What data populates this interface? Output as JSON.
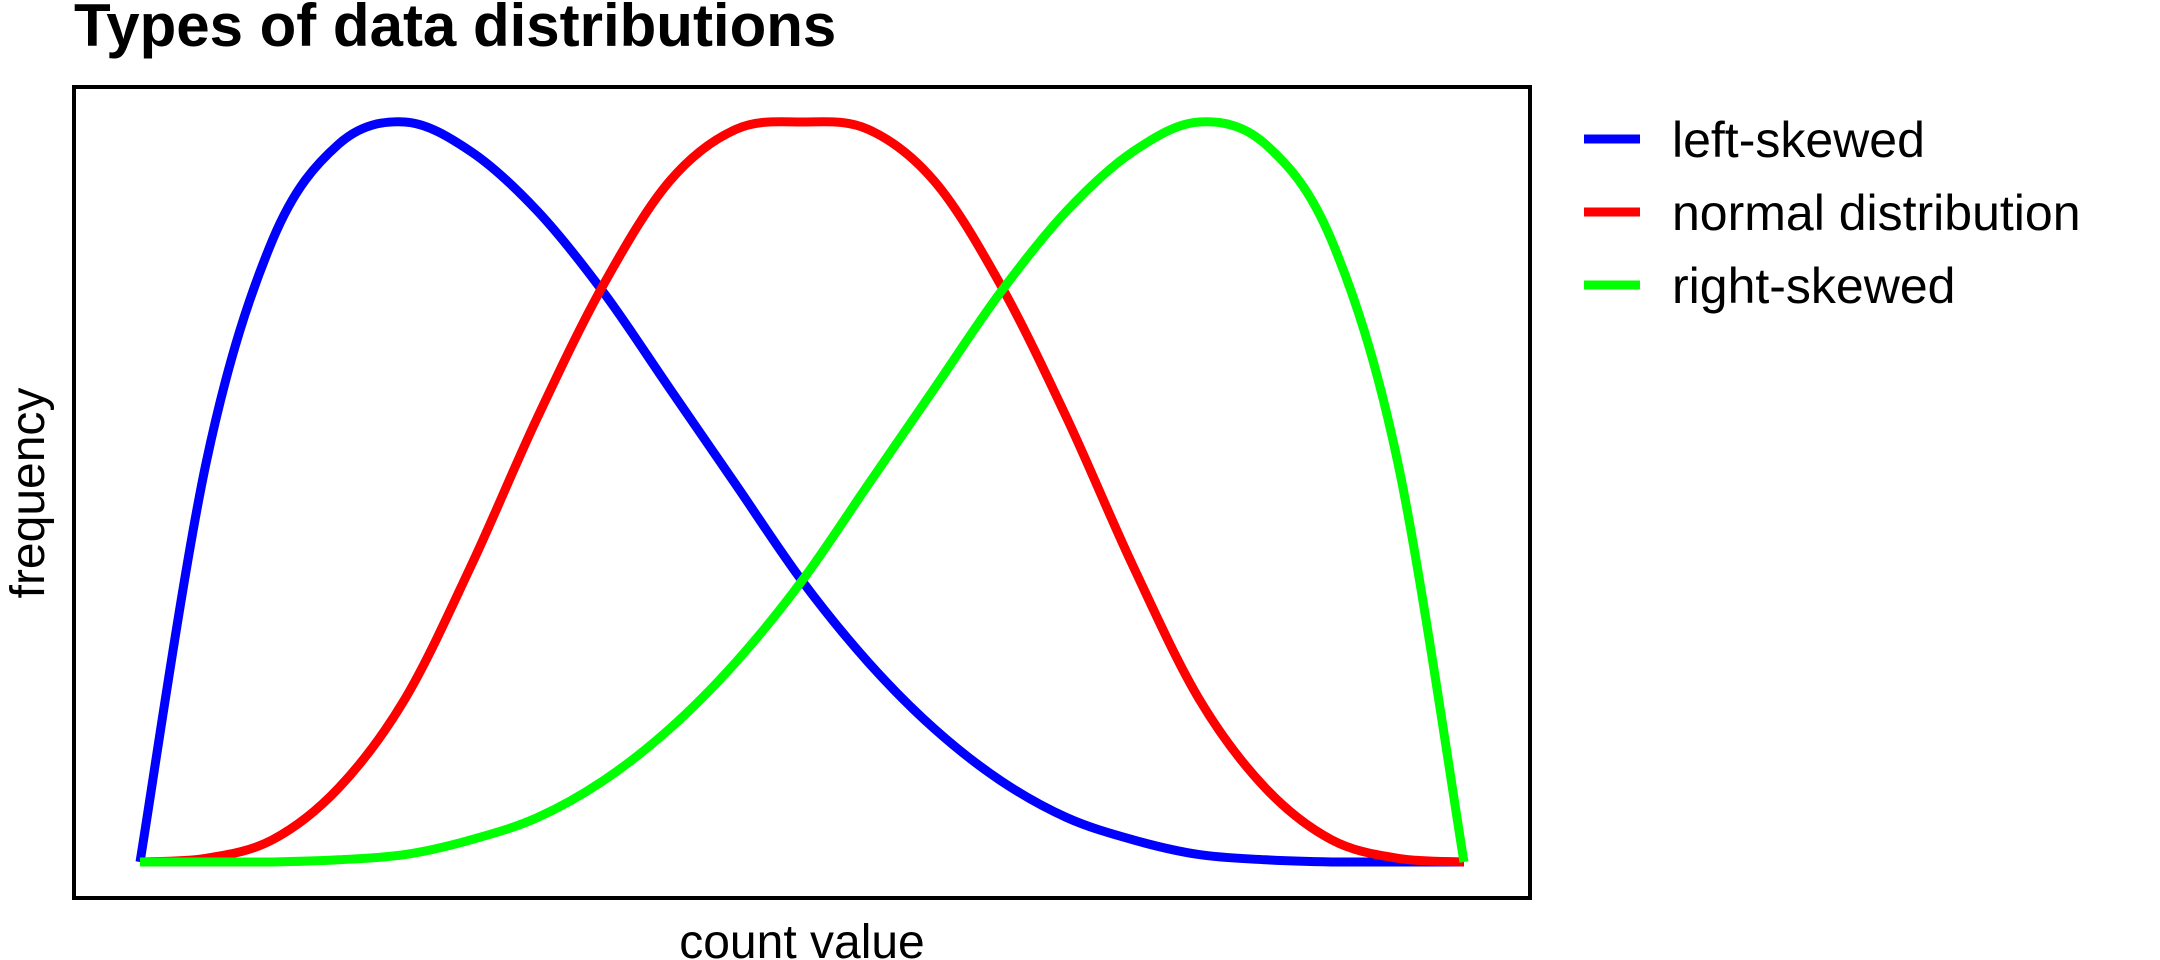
{
  "chart_data": {
    "type": "line",
    "title": "Types of data distributions",
    "xlabel": "count value",
    "ylabel": "frequency",
    "xticks": false,
    "yticks": false,
    "grid": false,
    "legend_position": "right",
    "xlim": [
      0,
      1
    ],
    "ylim": [
      0,
      1
    ],
    "series": [
      {
        "name": "left-skewed",
        "color": "#0000ff",
        "x": [
          0,
          0.05,
          0.1,
          0.15,
          0.2,
          0.25,
          0.3,
          0.35,
          0.4,
          0.45,
          0.5,
          0.55,
          0.6,
          0.65,
          0.7,
          0.75,
          0.8,
          0.85,
          0.9,
          0.95,
          1
        ],
        "values": [
          0,
          0.54,
          0.84,
          0.97,
          1.0,
          0.96,
          0.88,
          0.77,
          0.64,
          0.51,
          0.38,
          0.27,
          0.18,
          0.11,
          0.06,
          0.03,
          0.01,
          0.003,
          0,
          0,
          0
        ]
      },
      {
        "name": "normal distribution",
        "color": "#ff0000",
        "x": [
          0,
          0.05,
          0.1,
          0.15,
          0.2,
          0.25,
          0.3,
          0.35,
          0.4,
          0.45,
          0.5,
          0.55,
          0.6,
          0.65,
          0.7,
          0.75,
          0.8,
          0.85,
          0.9,
          0.95,
          1
        ],
        "values": [
          0,
          0.005,
          0.03,
          0.1,
          0.22,
          0.4,
          0.6,
          0.78,
          0.92,
          0.99,
          1.0,
          0.99,
          0.92,
          0.78,
          0.6,
          0.4,
          0.22,
          0.1,
          0.03,
          0.005,
          0
        ]
      },
      {
        "name": "right-skewed",
        "color": "#00ff00",
        "x": [
          0,
          0.05,
          0.1,
          0.15,
          0.2,
          0.25,
          0.3,
          0.35,
          0.4,
          0.45,
          0.5,
          0.55,
          0.6,
          0.65,
          0.7,
          0.75,
          0.8,
          0.85,
          0.9,
          0.95,
          1
        ],
        "values": [
          0,
          0,
          0,
          0.003,
          0.01,
          0.03,
          0.06,
          0.11,
          0.18,
          0.27,
          0.38,
          0.51,
          0.64,
          0.77,
          0.88,
          0.96,
          1.0,
          0.97,
          0.84,
          0.54,
          0
        ]
      }
    ]
  }
}
